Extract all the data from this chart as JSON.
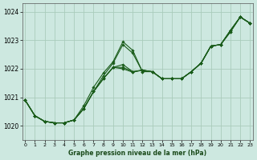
{
  "title": "Graphe pression niveau de la mer (hPa)",
  "x_ticks": [
    0,
    1,
    2,
    3,
    4,
    5,
    6,
    7,
    8,
    9,
    10,
    11,
    12,
    13,
    14,
    15,
    16,
    17,
    18,
    19,
    20,
    21,
    22,
    23
  ],
  "ylim": [
    1019.5,
    1024.3
  ],
  "yticks": [
    1020,
    1021,
    1022,
    1023,
    1024
  ],
  "xlim": [
    -0.3,
    23.3
  ],
  "bg_color": "#cde8e0",
  "grid_color": "#aaccbb",
  "line_color": "#1a5c1a",
  "series": [
    [
      1020.9,
      1020.35,
      1020.2,
      1020.1,
      1020.1,
      1020.2,
      1020.7,
      1021.3,
      1021.8,
      1022.2,
      1022.85,
      1022.6,
      1021.95,
      1021.9,
      1021.65,
      1021.65,
      1021.65,
      1021.85,
      1022.15,
      1022.75,
      1022.85,
      1023.35,
      1023.8,
      1023.62
    ],
    [
      1020.9,
      1020.35,
      1020.2,
      1020.1,
      1020.1,
      1020.2,
      1020.55,
      1021.15,
      1021.65,
      1022.05,
      1022.75,
      1022.5,
      1021.95,
      1021.9,
      1021.65,
      1021.65,
      1021.65,
      1021.9,
      1022.15,
      1022.8,
      1022.9,
      1023.4,
      1023.85,
      1023.65
    ],
    [
      1020.9,
      1020.35,
      1020.2,
      1020.1,
      1020.1,
      1020.2,
      1020.55,
      1021.15,
      1021.65,
      1022.05,
      1022.75,
      1022.45,
      1021.95,
      1021.9,
      1021.65,
      1021.65,
      1021.65,
      1021.9,
      1022.15,
      1022.8,
      1022.9,
      1023.4,
      1023.85,
      1023.68
    ],
    [
      1020.9,
      1020.35,
      1020.2,
      1020.1,
      1020.1,
      1020.2,
      1020.55,
      1021.15,
      1021.65,
      1022.05,
      1022.75,
      1022.45,
      1021.95,
      1021.9,
      1021.65,
      1021.65,
      1021.65,
      1021.9,
      1022.15,
      1022.8,
      1022.9,
      1023.4,
      1023.85,
      1023.7
    ],
    [
      1020.9,
      1020.35,
      1020.15,
      1020.1,
      1020.1,
      1020.2,
      1020.55,
      1021.15,
      1021.65,
      1022.05,
      1022.9,
      1022.6,
      1021.95,
      1021.9,
      1021.65,
      1021.65,
      1021.65,
      1021.9,
      1022.15,
      1022.8,
      1022.9,
      1023.4,
      1023.85,
      1023.72
    ]
  ],
  "peak_series": [
    1020.9,
    1020.35,
    1020.15,
    1020.1,
    1020.1,
    1020.2,
    1020.55,
    1021.15,
    1021.65,
    1022.35,
    1022.85,
    1022.55,
    1021.95,
    1021.85,
    1021.65,
    1021.65,
    1021.65,
    1021.9,
    1022.2,
    1022.8,
    1022.85,
    1023.3,
    1023.82,
    1023.6
  ],
  "linear_series": [
    1020.9,
    1020.35,
    1020.15,
    1020.1,
    1020.1,
    1020.2,
    1020.55,
    1021.15,
    1021.65,
    1022.05,
    1022.15,
    1021.85,
    1021.95,
    1021.9,
    1021.65,
    1021.65,
    1021.65,
    1021.9,
    1022.2,
    1022.8,
    1022.85,
    1023.3,
    1023.82,
    1023.6
  ]
}
